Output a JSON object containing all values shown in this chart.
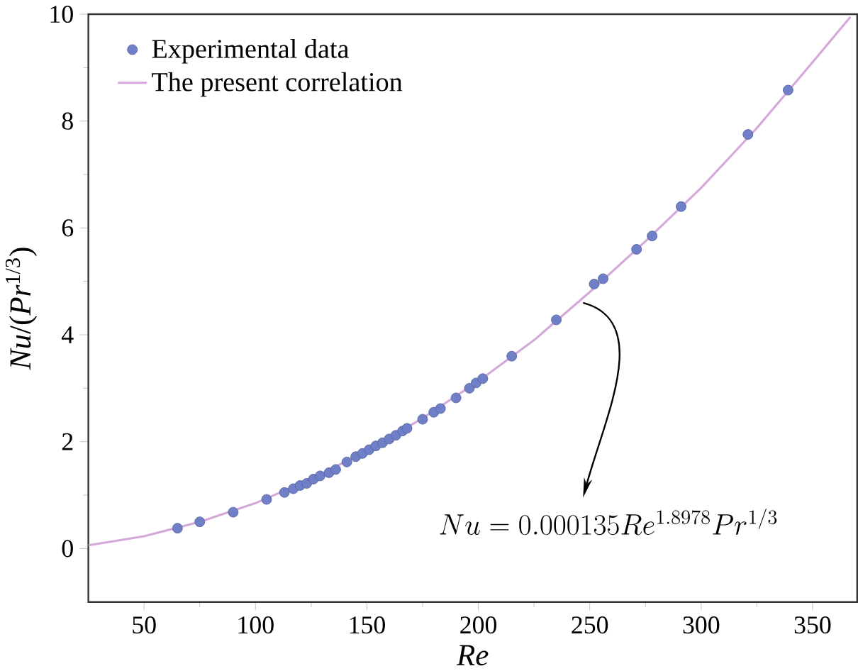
{
  "chart_data": {
    "type": "scatter",
    "xlabel": "Re",
    "ylabel": "*Nu*/(*Pr*$^{1/3}$)",
    "xlim": [
      25,
      370
    ],
    "ylim": [
      -1,
      10
    ],
    "xticks": [
      50,
      100,
      150,
      200,
      250,
      300,
      350
    ],
    "yticks": [
      0,
      2,
      4,
      6,
      8,
      10
    ],
    "legend": "top left",
    "grid": false,
    "annotations": [
      {
        "text": "Nu = 0.000135Re^{1.8978}Pr^{1/3}",
        "x": 247,
        "y": 4.6
      }
    ],
    "series": [
      {
        "name": "Experimental data",
        "marker": "circle",
        "color": "#6f7fc8",
        "x": [
          65,
          75,
          90,
          105,
          113,
          117,
          120,
          123,
          126,
          129,
          133,
          136,
          141,
          145,
          148,
          151,
          154,
          157,
          160,
          163,
          166,
          168,
          175,
          180,
          183,
          190,
          196,
          199,
          202,
          215,
          235,
          252,
          256,
          271,
          278,
          291,
          321,
          339
        ],
        "values": [
          0.38,
          0.5,
          0.68,
          0.92,
          1.05,
          1.12,
          1.18,
          1.22,
          1.3,
          1.36,
          1.42,
          1.48,
          1.62,
          1.72,
          1.78,
          1.85,
          1.92,
          1.98,
          2.05,
          2.12,
          2.2,
          2.25,
          2.42,
          2.55,
          2.62,
          2.82,
          3.0,
          3.1,
          3.18,
          3.6,
          4.28,
          4.95,
          5.05,
          5.6,
          5.85,
          6.4,
          7.75,
          8.58
        ]
      },
      {
        "name": "The present correlation",
        "type": "line",
        "marker": "none",
        "line_style": "solid",
        "color": "#d4a8d8",
        "x": [
          25,
          50,
          75,
          100,
          125,
          150,
          175,
          200,
          225,
          250,
          275,
          300,
          325,
          350,
          367
        ],
        "values": [
          0.06,
          0.23,
          0.5,
          0.85,
          1.3,
          1.83,
          2.44,
          3.13,
          3.9,
          4.8,
          5.75,
          6.75,
          7.87,
          9.1,
          9.95
        ]
      }
    ]
  }
}
